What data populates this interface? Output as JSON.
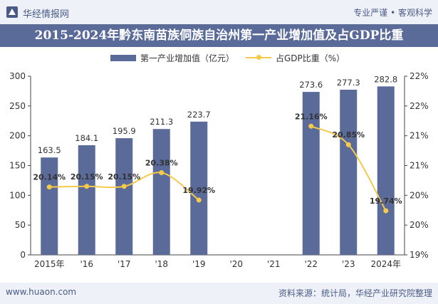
{
  "header": {
    "brand": "华经情报网",
    "slogan": "专业严谨 • 客观科学",
    "title": "2015-2024年黔东南苗族侗族自治州第一产业增加值及占GDP比重"
  },
  "footer": {
    "website": "www.huaon.com",
    "source": "资料来源：统计局，华经产业研究院整理"
  },
  "colors": {
    "bar": "#5a6b9a",
    "line": "#f5c94a",
    "band": "#5a6b9a",
    "bar_label": "#333333"
  },
  "chart_data": {
    "type": "bar",
    "categories": [
      "2015年",
      "'16",
      "'17",
      "'18",
      "'19",
      "'20",
      "'21",
      "'22",
      "'23",
      "2024年"
    ],
    "series": [
      {
        "name": "第一产业增加值（亿元）",
        "type": "bar",
        "axis": "left",
        "values": [
          163.5,
          184.1,
          195.9,
          211.3,
          223.7,
          null,
          null,
          273.6,
          277.3,
          282.8
        ],
        "labels": [
          "163.5",
          "184.1",
          "195.9",
          "211.3",
          "223.7",
          null,
          null,
          "273.6",
          "277.3",
          "282.8"
        ]
      },
      {
        "name": "占GDP比重（%）",
        "type": "line",
        "axis": "right",
        "values": [
          20.14,
          20.15,
          20.15,
          20.38,
          19.92,
          null,
          null,
          21.16,
          20.85,
          19.74
        ],
        "labels": [
          "20.14%",
          "20.15%",
          "20.15%",
          "20.38%",
          "19.92%",
          null,
          null,
          "21.16%",
          "20.85%",
          "19.74%"
        ]
      }
    ],
    "y_left": {
      "lim": [
        0,
        300
      ],
      "ticks": [
        0,
        50,
        100,
        150,
        200,
        250,
        300
      ],
      "tick_labels": [
        "0",
        "50",
        "100",
        "150",
        "200",
        "250",
        "300"
      ]
    },
    "y_right": {
      "lim": [
        19.0,
        22.0
      ],
      "ticks": [
        19.0,
        19.5,
        20.0,
        20.5,
        21.0,
        21.5,
        22.0
      ],
      "tick_labels": [
        "19%",
        "20%",
        "20%",
        "21%",
        "21%",
        "22%",
        "22%"
      ]
    },
    "legend_position": "top-center",
    "grid": false
  }
}
